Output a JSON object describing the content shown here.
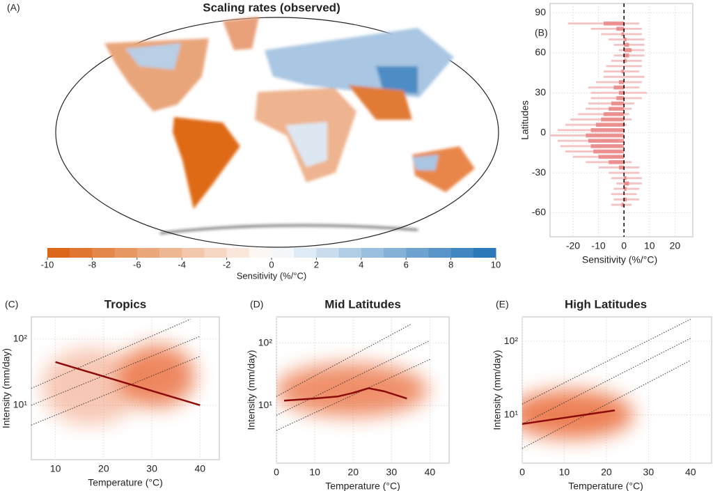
{
  "chart_data": [
    {
      "type": "map",
      "panel_label": "(A)",
      "title": "Scaling rates (observed)",
      "colorbar": {
        "label": "Sensitivity (%/°C)",
        "lim": [
          -10,
          10
        ],
        "ticks": [
          -10,
          -8,
          -6,
          -4,
          -2,
          0,
          2,
          4,
          6,
          8,
          10
        ],
        "colors": [
          "#d95f0e",
          "#ffffff",
          "#2171b5"
        ]
      }
    },
    {
      "type": "hbar",
      "panel_label": "(B)",
      "xlabel": "Sensitivity (%/°C)",
      "ylabel": "Latitudes",
      "color": "#e88080",
      "error_color": "#f4c4c4",
      "y": [
        -54,
        -50,
        -46,
        -42,
        -38,
        -34,
        -30,
        -26,
        -22,
        -18,
        -14,
        -10,
        -6,
        -2,
        2,
        6,
        10,
        14,
        18,
        22,
        26,
        30,
        34,
        38,
        42,
        46,
        50,
        54,
        58,
        62,
        66,
        70,
        74,
        78,
        82
      ],
      "values": [
        -1,
        1,
        0,
        1,
        2,
        1,
        0,
        -2,
        -6,
        -10,
        -12,
        -13,
        -14,
        -15,
        -13,
        -11,
        -9,
        -8,
        -6,
        -5,
        -3,
        -2,
        -4,
        -2,
        0,
        -1,
        0,
        1,
        2,
        3,
        2,
        1,
        -1,
        -3,
        -8
      ],
      "errors": [
        4,
        5,
        5,
        5,
        5,
        6,
        6,
        8,
        9,
        10,
        11,
        12,
        12,
        14,
        13,
        12,
        12,
        10,
        9,
        9,
        10,
        11,
        10,
        9,
        8,
        7,
        7,
        6,
        6,
        5,
        6,
        7,
        8,
        10,
        14
      ],
      "xlim": [
        -29,
        27
      ],
      "ylim": [
        -78,
        97
      ],
      "xticks": [
        -20,
        -10,
        0,
        10,
        20
      ],
      "yticks": [
        -60,
        -30,
        0,
        30,
        60,
        90
      ],
      "zero_line": true
    },
    {
      "type": "line",
      "panel_label": "(C)",
      "title": "Tropics",
      "xlabel": "Temperature (°C)",
      "ylabel": "Intensity (mm/day)",
      "log_y": true,
      "xlim": [
        5,
        44
      ],
      "ylim": [
        1.5,
        217
      ],
      "xticks": [
        10,
        20,
        30,
        40
      ],
      "yticks": [
        {
          "value": 10,
          "label": "10¹"
        },
        {
          "value": 100,
          "label": "10²"
        }
      ],
      "series": [
        {
          "color": "#8b0a0a",
          "x": [
            10,
            40
          ],
          "values": [
            45,
            10
          ]
        }
      ],
      "reference_lines": [
        {
          "x": [
            5,
            40
          ],
          "y": [
            5,
            55
          ]
        },
        {
          "x": [
            5,
            40
          ],
          "y": [
            10,
            110
          ]
        },
        {
          "x": [
            5,
            38
          ],
          "y": [
            18,
            200
          ]
        }
      ]
    },
    {
      "type": "line",
      "panel_label": "(D)",
      "title": "Mid Latitudes",
      "xlabel": "Temperature (°C)",
      "ylabel": "Intensity (mm/day)",
      "log_y": true,
      "xlim": [
        0,
        45
      ],
      "ylim": [
        1.2,
        263
      ],
      "xticks": [
        0,
        10,
        20,
        30,
        40
      ],
      "yticks": [
        {
          "value": 10,
          "label": "10¹"
        },
        {
          "value": 100,
          "label": "10²"
        }
      ],
      "series": [
        {
          "color": "#8b0a0a",
          "x": [
            2,
            10,
            16,
            20,
            24,
            28,
            34
          ],
          "values": [
            12,
            13,
            14,
            16,
            19,
            17,
            13
          ]
        }
      ],
      "reference_lines": [
        {
          "x": [
            0,
            40
          ],
          "y": [
            4,
            55
          ]
        },
        {
          "x": [
            0,
            40
          ],
          "y": [
            7,
            110
          ]
        },
        {
          "x": [
            0,
            35
          ],
          "y": [
            14,
            200
          ]
        }
      ]
    },
    {
      "type": "line",
      "panel_label": "(E)",
      "title": "High Latitudes",
      "xlabel": "Temperature (°C)",
      "ylabel": "Intensity (mm/day)",
      "log_y": true,
      "xlim": [
        0,
        45
      ],
      "ylim": [
        2.2,
        215
      ],
      "xticks": [
        0,
        10,
        20,
        30,
        40
      ],
      "yticks": [
        {
          "value": 10,
          "label": "10¹"
        },
        {
          "value": 100,
          "label": "10²"
        }
      ],
      "series": [
        {
          "color": "#8b0a0a",
          "x": [
            0,
            22
          ],
          "values": [
            7.5,
            11.5
          ]
        }
      ],
      "reference_lines": [
        {
          "x": [
            0,
            40
          ],
          "y": [
            3.5,
            55
          ]
        },
        {
          "x": [
            0,
            40
          ],
          "y": [
            7.5,
            110
          ]
        },
        {
          "x": [
            0,
            40
          ],
          "y": [
            14,
            200
          ]
        }
      ]
    }
  ]
}
